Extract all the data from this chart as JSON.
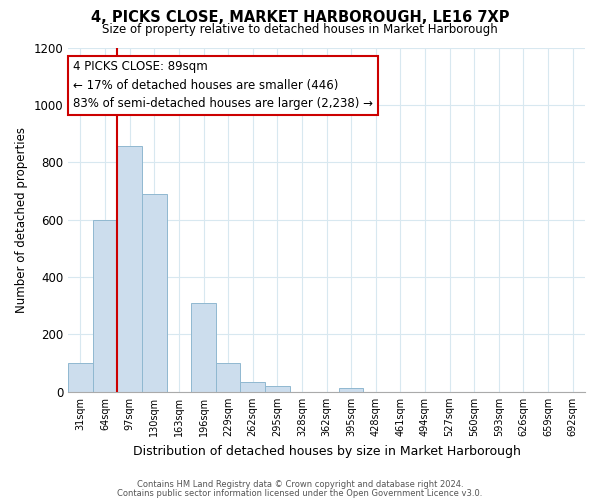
{
  "title": "4, PICKS CLOSE, MARKET HARBOROUGH, LE16 7XP",
  "subtitle": "Size of property relative to detached houses in Market Harborough",
  "xlabel": "Distribution of detached houses by size in Market Harborough",
  "ylabel": "Number of detached properties",
  "bar_values": [
    100,
    600,
    855,
    690,
    0,
    310,
    100,
    35,
    20,
    0,
    0,
    15,
    0,
    0,
    0,
    0,
    0,
    0,
    0,
    0,
    0
  ],
  "bin_labels": [
    "31sqm",
    "64sqm",
    "97sqm",
    "130sqm",
    "163sqm",
    "196sqm",
    "229sqm",
    "262sqm",
    "295sqm",
    "328sqm",
    "362sqm",
    "395sqm",
    "428sqm",
    "461sqm",
    "494sqm",
    "527sqm",
    "560sqm",
    "593sqm",
    "626sqm",
    "659sqm",
    "692sqm"
  ],
  "bar_color": "#ccdded",
  "bar_edge_color": "#90b8d0",
  "property_line_index": 2,
  "property_line_color": "#cc0000",
  "annotation_title": "4 PICKS CLOSE: 89sqm",
  "annotation_line1": "← 17% of detached houses are smaller (446)",
  "annotation_line2": "83% of semi-detached houses are larger (2,238) →",
  "annotation_box_color": "#ffffff",
  "annotation_box_edge": "#cc0000",
  "ylim": [
    0,
    1200
  ],
  "yticks": [
    0,
    200,
    400,
    600,
    800,
    1000,
    1200
  ],
  "footer1": "Contains HM Land Registry data © Crown copyright and database right 2024.",
  "footer2": "Contains public sector information licensed under the Open Government Licence v3.0.",
  "background_color": "#ffffff",
  "grid_color": "#d8e8f0"
}
